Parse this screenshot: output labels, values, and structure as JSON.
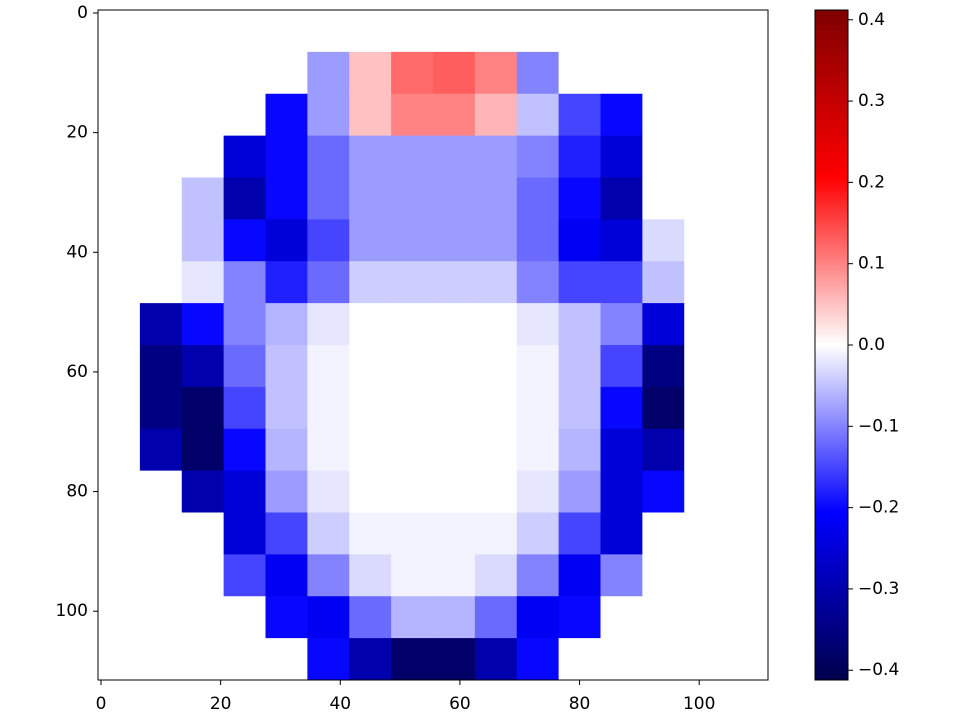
{
  "chart_data": {
    "type": "heatmap",
    "x": [
      3,
      10,
      17,
      24,
      31,
      38,
      45,
      52,
      59,
      66,
      73,
      80,
      87,
      94,
      101,
      108
    ],
    "y": [
      3,
      10,
      17,
      24,
      31,
      38,
      45,
      52,
      59,
      66,
      73,
      80,
      87,
      94,
      101,
      108
    ],
    "z": [
      [
        0,
        0,
        0,
        0,
        0,
        0,
        0,
        0,
        0,
        0,
        0,
        0,
        0,
        0,
        0,
        0
      ],
      [
        0,
        0,
        0,
        0,
        0,
        -0.08,
        0.05,
        0.12,
        0.13,
        0.1,
        -0.1,
        0,
        0,
        0,
        0,
        0
      ],
      [
        0,
        0,
        0,
        0,
        -0.2,
        -0.08,
        0.05,
        0.1,
        0.1,
        0.06,
        -0.05,
        -0.15,
        -0.2,
        0,
        0,
        0
      ],
      [
        0,
        0,
        0,
        -0.25,
        -0.2,
        -0.12,
        -0.08,
        -0.08,
        -0.08,
        -0.08,
        -0.1,
        -0.18,
        -0.25,
        0,
        0,
        0
      ],
      [
        0,
        0,
        -0.05,
        -0.3,
        -0.2,
        -0.12,
        -0.08,
        -0.08,
        -0.08,
        -0.08,
        -0.12,
        -0.2,
        -0.3,
        0,
        0,
        0
      ],
      [
        0,
        0,
        -0.05,
        -0.2,
        -0.25,
        -0.15,
        -0.08,
        -0.08,
        -0.08,
        -0.08,
        -0.12,
        -0.22,
        -0.25,
        -0.03,
        0,
        0
      ],
      [
        0,
        0,
        -0.02,
        -0.1,
        -0.18,
        -0.12,
        -0.04,
        -0.04,
        -0.04,
        -0.04,
        -0.1,
        -0.15,
        -0.15,
        -0.05,
        0,
        0
      ],
      [
        0,
        -0.3,
        -0.2,
        -0.1,
        -0.06,
        -0.02,
        0,
        0,
        0,
        0,
        -0.02,
        -0.05,
        -0.1,
        -0.25,
        0,
        0
      ],
      [
        0,
        -0.35,
        -0.3,
        -0.12,
        -0.05,
        -0.01,
        0,
        0,
        0,
        0,
        -0.01,
        -0.05,
        -0.15,
        -0.35,
        0,
        0
      ],
      [
        0,
        -0.35,
        -0.38,
        -0.15,
        -0.05,
        -0.01,
        0,
        0,
        0,
        0,
        -0.01,
        -0.05,
        -0.2,
        -0.38,
        0,
        0
      ],
      [
        0,
        -0.3,
        -0.38,
        -0.2,
        -0.06,
        -0.01,
        0,
        0,
        0,
        0,
        -0.01,
        -0.06,
        -0.25,
        -0.3,
        0,
        0
      ],
      [
        0,
        0,
        -0.3,
        -0.25,
        -0.08,
        -0.02,
        0,
        0,
        0,
        0,
        -0.02,
        -0.08,
        -0.25,
        -0.2,
        0,
        0
      ],
      [
        0,
        0,
        0,
        -0.25,
        -0.15,
        -0.04,
        -0.01,
        -0.01,
        -0.01,
        -0.01,
        -0.04,
        -0.15,
        -0.25,
        0,
        0,
        0
      ],
      [
        0,
        0,
        0,
        -0.15,
        -0.22,
        -0.1,
        -0.03,
        -0.01,
        -0.01,
        -0.03,
        -0.1,
        -0.22,
        -0.1,
        0,
        0,
        0
      ],
      [
        0,
        0,
        0,
        0,
        -0.2,
        -0.22,
        -0.12,
        -0.06,
        -0.06,
        -0.12,
        -0.22,
        -0.2,
        0,
        0,
        0,
        0
      ],
      [
        0,
        0,
        0,
        0,
        0,
        -0.2,
        -0.3,
        -0.38,
        -0.38,
        -0.3,
        -0.2,
        0,
        0,
        0,
        0,
        0
      ]
    ],
    "xlim": [
      -0.5,
      111.5
    ],
    "ylim": [
      111.5,
      -0.5
    ],
    "xticks": [
      0,
      20,
      40,
      60,
      80,
      100
    ],
    "yticks": [
      0,
      20,
      40,
      60,
      80,
      100
    ],
    "colormap": [
      "#00004c",
      "#0000ff",
      "#ffffff",
      "#ff0000",
      "#7f0000"
    ],
    "clim": [
      -0.412,
      0.412
    ],
    "cticks": [
      {
        "value": -0.4,
        "label": "−0.4"
      },
      {
        "value": -0.3,
        "label": "−0.3"
      },
      {
        "value": -0.2,
        "label": "−0.2"
      },
      {
        "value": -0.1,
        "label": "−0.1"
      },
      {
        "value": 0,
        "label": "0.0"
      },
      0.1,
      0.2,
      0.3,
      0.4
    ]
  }
}
